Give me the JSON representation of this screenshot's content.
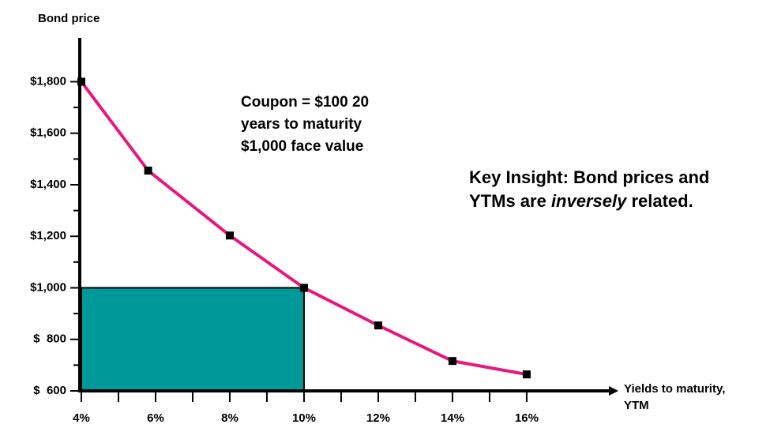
{
  "chart_data": {
    "type": "line",
    "y_axis_label": "Bond price",
    "x_axis_label": [
      "Yields to maturity,",
      "YTM"
    ],
    "x": [
      4,
      5.8,
      8,
      10,
      12,
      14,
      16
    ],
    "series": [
      {
        "color": "#e5197e",
        "values": [
          1800,
          1455,
          1203,
          1000,
          854,
          716,
          664
        ]
      }
    ],
    "xlim": [
      4,
      18.3
    ],
    "ylim": [
      600,
      1970
    ],
    "xticks": [
      {
        "value": 4,
        "label": "4%"
      },
      {
        "value": 6,
        "label": "6%"
      },
      {
        "value": 8,
        "label": "8%"
      },
      {
        "value": 10,
        "label": "10%"
      },
      {
        "value": 12,
        "label": "12%"
      },
      {
        "value": 14,
        "label": "14%"
      },
      {
        "value": 16,
        "label": "16%"
      }
    ],
    "x_minor_ticks": [
      5,
      7,
      9,
      11,
      13,
      15
    ],
    "yticks": [
      {
        "value": 600,
        "label": "$  600"
      },
      {
        "value": 800,
        "label": "$  800"
      },
      {
        "value": 1000,
        "label": "$1,000"
      },
      {
        "value": 1200,
        "label": "$1,200"
      },
      {
        "value": 1400,
        "label": "$1,400"
      },
      {
        "value": 1600,
        "label": "$1,600"
      },
      {
        "value": 1800,
        "label": "$1,800"
      }
    ],
    "y_minor_ticks": [
      700,
      900,
      1100,
      1300,
      1500,
      1700
    ],
    "highlight": {
      "x": [
        4,
        10
      ],
      "y": [
        600,
        1000
      ],
      "color": "#009999"
    },
    "annotation": [
      "Coupon = $100 20",
      "years to maturity",
      "$1,000 face value"
    ],
    "insight": {
      "line1": "Key Insight: Bond prices and",
      "line2": [
        "YTMs are ",
        "inversely",
        " related."
      ]
    }
  }
}
